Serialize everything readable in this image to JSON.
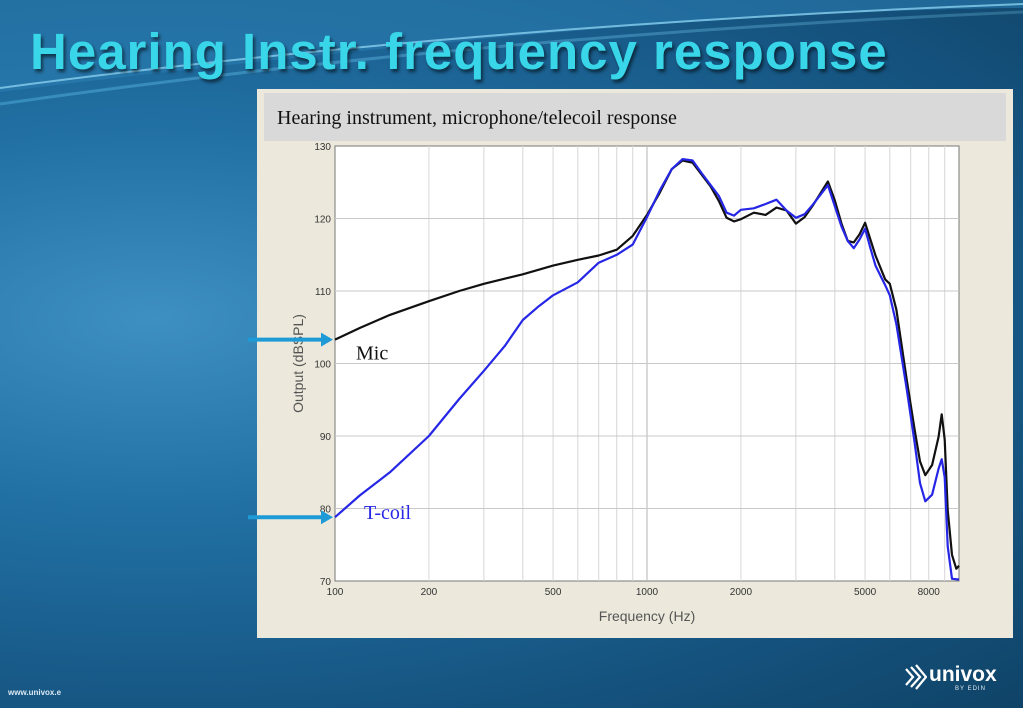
{
  "slide": {
    "title": "Hearing Instr. frequency response",
    "footer_url": "www.univox.e",
    "logo": {
      "wordmark": "univox",
      "tagline": "BY EDIN",
      "icon": "chevron-waves-icon"
    }
  },
  "colors": {
    "title": "#38d6e8",
    "mic_line": "#111111",
    "tcoil_line": "#2626e6",
    "arrow": "#1e9bd7"
  },
  "chart_data": {
    "type": "line",
    "title": "Hearing instrument, microphone/telecoil response",
    "xlabel": "Frequency (Hz)",
    "ylabel": "Output (dBSPL)",
    "xscale": "log",
    "xlim": [
      100,
      10000
    ],
    "ylim": [
      70,
      130
    ],
    "xticks": [
      100,
      200,
      500,
      1000,
      2000,
      5000,
      8000
    ],
    "xtick_labels": [
      "100",
      "200",
      "500",
      "1000",
      "2000",
      "5000",
      "8000"
    ],
    "yticks": [
      70,
      80,
      90,
      100,
      110,
      120,
      130
    ],
    "grid": true,
    "annotations": [
      {
        "text": "Mic",
        "series": "mic"
      },
      {
        "text": "T-coil",
        "series": "tcoil"
      }
    ],
    "series": [
      {
        "id": "mic",
        "color": "#111111",
        "points": [
          [
            100,
            103.3
          ],
          [
            120,
            104.9
          ],
          [
            150,
            106.7
          ],
          [
            200,
            108.6
          ],
          [
            250,
            110.0
          ],
          [
            300,
            111.0
          ],
          [
            400,
            112.3
          ],
          [
            500,
            113.5
          ],
          [
            600,
            114.3
          ],
          [
            700,
            114.9
          ],
          [
            800,
            115.7
          ],
          [
            900,
            117.6
          ],
          [
            1000,
            120.5
          ],
          [
            1100,
            123.6
          ],
          [
            1200,
            126.8
          ],
          [
            1300,
            128.0
          ],
          [
            1400,
            127.7
          ],
          [
            1500,
            126.0
          ],
          [
            1600,
            124.4
          ],
          [
            1700,
            122.4
          ],
          [
            1800,
            120.1
          ],
          [
            1900,
            119.6
          ],
          [
            2000,
            119.9
          ],
          [
            2200,
            120.8
          ],
          [
            2400,
            120.5
          ],
          [
            2600,
            121.5
          ],
          [
            2800,
            121.1
          ],
          [
            3000,
            119.3
          ],
          [
            3200,
            120.2
          ],
          [
            3400,
            121.8
          ],
          [
            3600,
            123.5
          ],
          [
            3800,
            125.1
          ],
          [
            4000,
            122.5
          ],
          [
            4200,
            119.3
          ],
          [
            4400,
            116.9
          ],
          [
            4600,
            116.7
          ],
          [
            4800,
            117.8
          ],
          [
            5000,
            119.4
          ],
          [
            5200,
            117.1
          ],
          [
            5400,
            114.9
          ],
          [
            5800,
            111.6
          ],
          [
            6000,
            111.0
          ],
          [
            6300,
            107.4
          ],
          [
            6800,
            97.8
          ],
          [
            7200,
            91.0
          ],
          [
            7500,
            86.5
          ],
          [
            7800,
            84.6
          ],
          [
            8200,
            86.0
          ],
          [
            8600,
            89.9
          ],
          [
            8800,
            93.0
          ],
          [
            9000,
            89.5
          ],
          [
            9200,
            79.8
          ],
          [
            9500,
            73.6
          ],
          [
            9800,
            71.7
          ],
          [
            10000,
            72.1
          ]
        ]
      },
      {
        "id": "tcoil",
        "color": "#2626e6",
        "points": [
          [
            100,
            78.8
          ],
          [
            120,
            81.8
          ],
          [
            150,
            85.0
          ],
          [
            200,
            90.0
          ],
          [
            250,
            95.1
          ],
          [
            300,
            99.0
          ],
          [
            350,
            102.4
          ],
          [
            400,
            106.0
          ],
          [
            450,
            107.9
          ],
          [
            500,
            109.4
          ],
          [
            600,
            111.2
          ],
          [
            700,
            113.9
          ],
          [
            800,
            115.0
          ],
          [
            900,
            116.4
          ],
          [
            1000,
            120.2
          ],
          [
            1100,
            123.9
          ],
          [
            1200,
            126.8
          ],
          [
            1300,
            128.2
          ],
          [
            1400,
            128.0
          ],
          [
            1500,
            126.2
          ],
          [
            1600,
            124.6
          ],
          [
            1700,
            123.1
          ],
          [
            1800,
            120.8
          ],
          [
            1900,
            120.4
          ],
          [
            2000,
            121.2
          ],
          [
            2200,
            121.4
          ],
          [
            2400,
            122.0
          ],
          [
            2600,
            122.6
          ],
          [
            2800,
            121.1
          ],
          [
            3000,
            120.1
          ],
          [
            3200,
            120.6
          ],
          [
            3400,
            121.9
          ],
          [
            3600,
            123.3
          ],
          [
            3800,
            124.6
          ],
          [
            4000,
            121.7
          ],
          [
            4200,
            118.9
          ],
          [
            4400,
            116.9
          ],
          [
            4600,
            115.9
          ],
          [
            4800,
            117.1
          ],
          [
            5000,
            118.6
          ],
          [
            5200,
            115.9
          ],
          [
            5400,
            113.5
          ],
          [
            5800,
            110.8
          ],
          [
            6000,
            109.4
          ],
          [
            6300,
            105.4
          ],
          [
            6800,
            96.5
          ],
          [
            7200,
            89.2
          ],
          [
            7500,
            83.5
          ],
          [
            7800,
            81.0
          ],
          [
            8200,
            81.9
          ],
          [
            8600,
            85.5
          ],
          [
            8800,
            86.8
          ],
          [
            9000,
            84.3
          ],
          [
            9200,
            74.8
          ],
          [
            9500,
            70.3
          ],
          [
            10000,
            70.2
          ]
        ]
      }
    ]
  }
}
